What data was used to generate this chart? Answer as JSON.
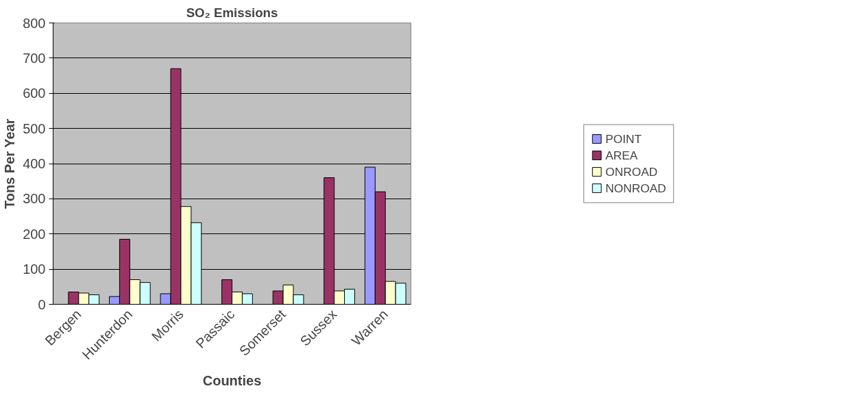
{
  "chart_data": {
    "type": "bar",
    "title": "SO₂ Emissions",
    "xlabel": "Counties",
    "ylabel": "Tons Per Year",
    "categories": [
      "Bergen",
      "Hunterdon",
      "Morris",
      "Passaic",
      "Somerset",
      "Sussex",
      "Warren"
    ],
    "series": [
      {
        "name": "POINT",
        "color": "#9999ff",
        "values": [
          null,
          22,
          30,
          null,
          null,
          null,
          390
        ]
      },
      {
        "name": "AREA",
        "color": "#993366",
        "values": [
          35,
          185,
          670,
          70,
          38,
          360,
          320
        ]
      },
      {
        "name": "ONROAD",
        "color": "#ffffcc",
        "values": [
          32,
          70,
          278,
          35,
          55,
          38,
          65
        ]
      },
      {
        "name": "NONROAD",
        "color": "#ccffff",
        "values": [
          27,
          62,
          232,
          30,
          27,
          43,
          60
        ]
      }
    ],
    "ylim": [
      0,
      800
    ],
    "yticks": [
      0,
      100,
      200,
      300,
      400,
      500,
      600,
      700,
      800
    ],
    "grid": "y",
    "legend": "right"
  }
}
